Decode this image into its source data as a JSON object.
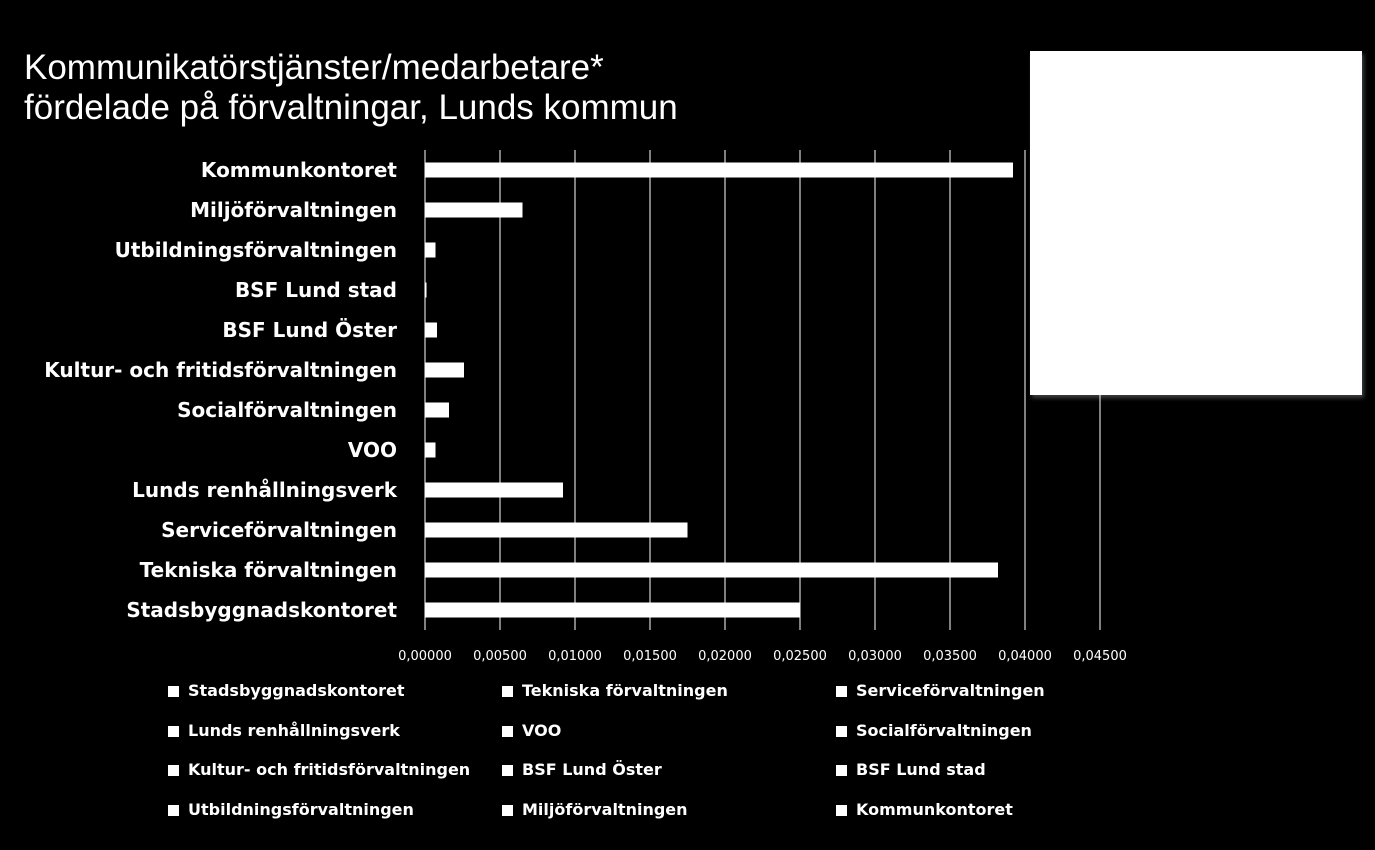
{
  "chart_data": {
    "type": "bar",
    "orientation": "horizontal",
    "title_lines": [
      "Kommunikatörstjänster/medarbetare*",
      "fördelade på förvaltningar, Lunds kommun"
    ],
    "categories": [
      "Kommunkontoret",
      "Miljöförvaltningen",
      "Utbildningsförvaltningen",
      "BSF Lund stad",
      "BSF Lund Öster ",
      "Kultur- och fritidsförvaltningen",
      "Socialförvaltningen",
      "VOO",
      "Lunds renhållningsverk",
      "Serviceförvaltningen",
      "Tekniska förvaltningen",
      "Stadsbyggnadskontoret"
    ],
    "values": [
      0.0392,
      0.0065,
      0.0007,
      0.0001,
      0.0008,
      0.0026,
      0.0016,
      0.0007,
      0.0092,
      0.0175,
      0.0382,
      0.025
    ],
    "xlim": [
      0,
      0.045
    ],
    "x_ticks": [
      "0,00000",
      "0,00500",
      "0,01000",
      "0,01500",
      "0,02000",
      "0,02500",
      "0,03000",
      "0,03500",
      "0,04000",
      "0,04500"
    ],
    "grid": "vertical",
    "legend_position": "bottom",
    "legend": [
      "Stadsbyggnadskontoret",
      "Tekniska förvaltningen",
      "Serviceförvaltningen",
      "Lunds renhållningsverk",
      "VOO",
      "Socialförvaltningen",
      "Kultur- och fritidsförvaltningen",
      "BSF Lund Öster",
      "BSF Lund stad",
      "Utbildningsförvaltningen",
      "Miljöförvaltningen",
      "Kommunkontoret"
    ],
    "colors": {
      "background": "#000000",
      "bar": "#ffffff",
      "text": "#ffffff",
      "grid": "#ffffff"
    }
  }
}
